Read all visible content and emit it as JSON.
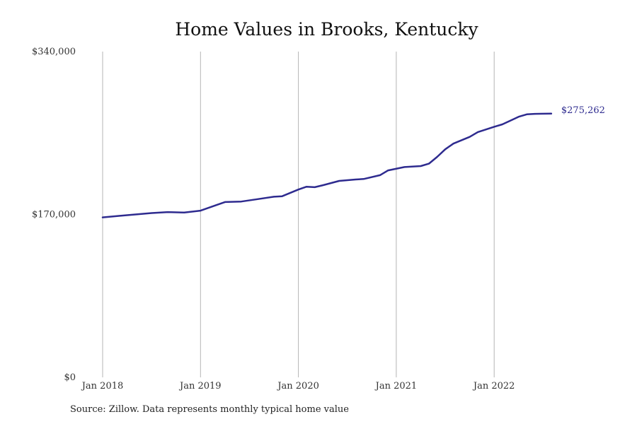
{
  "chart_data": {
    "type": "line",
    "title": "Home Values in Brooks, Kentucky",
    "xlabel": "",
    "ylabel": "",
    "ylim": [
      0,
      340000
    ],
    "xlim": [
      "2018-01",
      "2022-08"
    ],
    "grid": "vertical",
    "y_ticks": [
      {
        "value": 0,
        "label": "$0"
      },
      {
        "value": 170000,
        "label": "$170,000"
      },
      {
        "value": 340000,
        "label": "$340,000"
      }
    ],
    "x_ticks": [
      {
        "value": "2018-01",
        "label": "Jan 2018"
      },
      {
        "value": "2019-01",
        "label": "Jan 2019"
      },
      {
        "value": "2020-01",
        "label": "Jan 2020"
      },
      {
        "value": "2021-01",
        "label": "Jan 2021"
      },
      {
        "value": "2022-01",
        "label": "Jan 2022"
      }
    ],
    "series": [
      {
        "color": "#2e2b8f",
        "end_label": "$275,262",
        "points": [
          {
            "x": "2018-01",
            "y": 167000
          },
          {
            "x": "2018-03",
            "y": 168500
          },
          {
            "x": "2018-05",
            "y": 170000
          },
          {
            "x": "2018-07",
            "y": 171500
          },
          {
            "x": "2018-09",
            "y": 172500
          },
          {
            "x": "2018-11",
            "y": 172000
          },
          {
            "x": "2019-01",
            "y": 174000
          },
          {
            "x": "2019-03",
            "y": 180000
          },
          {
            "x": "2019-04",
            "y": 183000
          },
          {
            "x": "2019-06",
            "y": 183500
          },
          {
            "x": "2019-08",
            "y": 186000
          },
          {
            "x": "2019-10",
            "y": 188500
          },
          {
            "x": "2019-11",
            "y": 189000
          },
          {
            "x": "2020-01",
            "y": 196000
          },
          {
            "x": "2020-02",
            "y": 199000
          },
          {
            "x": "2020-03",
            "y": 198500
          },
          {
            "x": "2020-04",
            "y": 200500
          },
          {
            "x": "2020-06",
            "y": 205000
          },
          {
            "x": "2020-08",
            "y": 206500
          },
          {
            "x": "2020-09",
            "y": 207000
          },
          {
            "x": "2020-11",
            "y": 211000
          },
          {
            "x": "2020-12",
            "y": 216000
          },
          {
            "x": "2021-02",
            "y": 219500
          },
          {
            "x": "2021-04",
            "y": 220500
          },
          {
            "x": "2021-05",
            "y": 223000
          },
          {
            "x": "2021-06",
            "y": 230000
          },
          {
            "x": "2021-07",
            "y": 238000
          },
          {
            "x": "2021-08",
            "y": 244000
          },
          {
            "x": "2021-10",
            "y": 251000
          },
          {
            "x": "2021-11",
            "y": 256000
          },
          {
            "x": "2022-01",
            "y": 261500
          },
          {
            "x": "2022-02",
            "y": 264000
          },
          {
            "x": "2022-03",
            "y": 268000
          },
          {
            "x": "2022-04",
            "y": 272000
          },
          {
            "x": "2022-05",
            "y": 274500
          },
          {
            "x": "2022-06",
            "y": 275000
          },
          {
            "x": "2022-08",
            "y": 275262
          }
        ]
      }
    ]
  },
  "source_note": "Source: Zillow. Data represents monthly typical home value"
}
